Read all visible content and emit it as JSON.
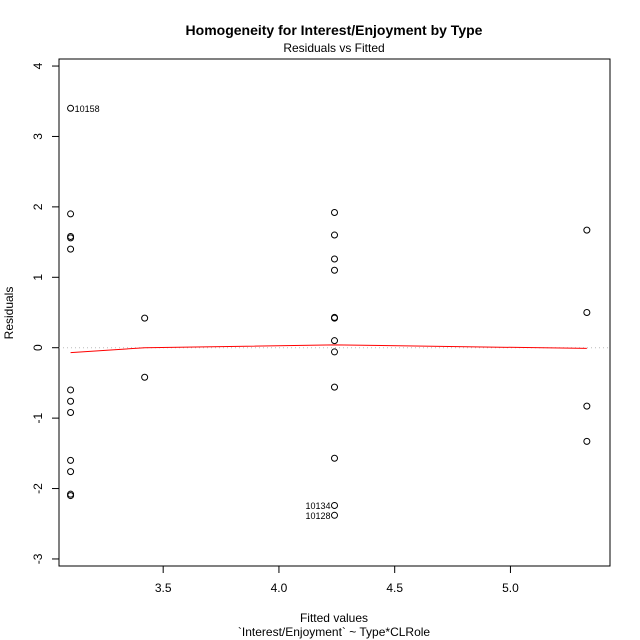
{
  "chart_data": {
    "type": "scatter",
    "title": "Homogeneity for Interest/Enjoyment by Type",
    "subtitle": "Residuals vs Fitted",
    "xlabel": "Fitted values",
    "xlabel2": "`Interest/Enjoyment` ~ Type*CLRole",
    "ylabel": "Residuals",
    "xlim": [
      3.05,
      5.43
    ],
    "ylim": [
      -3.1,
      4.1
    ],
    "xticks": [
      3.5,
      4.0,
      4.5,
      5.0
    ],
    "xtick_labels": [
      "3.5",
      "4.0",
      "4.5",
      "5.0"
    ],
    "yticks": [
      -3,
      -2,
      -1,
      0,
      1,
      2,
      3,
      4
    ],
    "ytick_labels": [
      "-3",
      "-2",
      "-1",
      "0",
      "1",
      "2",
      "3",
      "4"
    ],
    "grid": false,
    "zero_line_color": "#bbbbbb",
    "smoother_color": "#ff0000",
    "points": [
      {
        "x": 3.1,
        "y": 3.4,
        "label": "10158"
      },
      {
        "x": 3.1,
        "y": 1.9
      },
      {
        "x": 3.1,
        "y": 1.58
      },
      {
        "x": 3.1,
        "y": 1.56
      },
      {
        "x": 3.1,
        "y": 1.4
      },
      {
        "x": 3.1,
        "y": -0.6
      },
      {
        "x": 3.1,
        "y": -0.76
      },
      {
        "x": 3.1,
        "y": -0.92
      },
      {
        "x": 3.1,
        "y": -1.6
      },
      {
        "x": 3.1,
        "y": -1.76
      },
      {
        "x": 3.1,
        "y": -2.08
      },
      {
        "x": 3.1,
        "y": -2.1
      },
      {
        "x": 3.42,
        "y": 0.42
      },
      {
        "x": 3.42,
        "y": -0.42
      },
      {
        "x": 4.24,
        "y": 1.92
      },
      {
        "x": 4.24,
        "y": 1.6
      },
      {
        "x": 4.24,
        "y": 1.26
      },
      {
        "x": 4.24,
        "y": 1.1
      },
      {
        "x": 4.24,
        "y": 0.43
      },
      {
        "x": 4.24,
        "y": 0.42
      },
      {
        "x": 4.24,
        "y": 0.1
      },
      {
        "x": 4.24,
        "y": -0.06
      },
      {
        "x": 4.24,
        "y": -0.56
      },
      {
        "x": 4.24,
        "y": -1.57
      },
      {
        "x": 4.24,
        "y": -2.24,
        "label": "10134"
      },
      {
        "x": 4.24,
        "y": -2.38,
        "label": "10128"
      },
      {
        "x": 5.33,
        "y": 1.67
      },
      {
        "x": 5.33,
        "y": 0.5
      },
      {
        "x": 5.33,
        "y": -0.83
      },
      {
        "x": 5.33,
        "y": -1.33
      }
    ],
    "smoother": {
      "x": [
        3.1,
        3.42,
        4.24,
        5.33
      ],
      "y": [
        -0.07,
        -0.0,
        0.04,
        -0.01
      ]
    }
  }
}
